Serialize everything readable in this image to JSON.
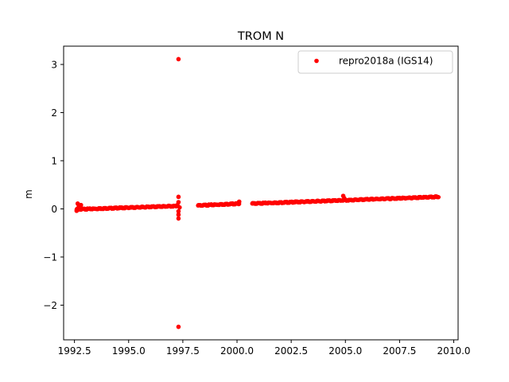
{
  "chart_data": {
    "type": "scatter",
    "title": "TROM N",
    "xlabel": "",
    "ylabel": "m",
    "xlim": [
      1992.0,
      2010.2
    ],
    "ylim": [
      -2.72,
      3.38
    ],
    "xticks": [
      1992.5,
      1995.0,
      1997.5,
      2000.0,
      2002.5,
      2005.0,
      2007.5,
      2010.0
    ],
    "xtick_labels": [
      "1992.5",
      "1995.0",
      "1997.5",
      "2000.0",
      "2002.5",
      "2005.0",
      "2007.5",
      "2010.0"
    ],
    "yticks": [
      -2,
      -1,
      0,
      1,
      2,
      3
    ],
    "ytick_labels": [
      "−2",
      "−1",
      "0",
      "1",
      "2",
      "3"
    ],
    "grid": false,
    "legend_position": "top-right",
    "series": [
      {
        "name": "repro2018a (IGS14)",
        "color": "#ff0000",
        "marker": "dot",
        "segments": [
          {
            "x_start": 1992.6,
            "x_end": 1997.2,
            "y_start": -0.01,
            "y_end": 0.06
          },
          {
            "x_start": 1998.2,
            "x_end": 2000.1,
            "y_start": 0.07,
            "y_end": 0.11
          },
          {
            "x_start": 2000.7,
            "x_end": 2009.3,
            "y_start": 0.11,
            "y_end": 0.25
          }
        ],
        "points": [
          {
            "x": 1997.3,
            "y": 3.11
          },
          {
            "x": 1997.3,
            "y": 0.25
          },
          {
            "x": 1997.3,
            "y": 0.14
          },
          {
            "x": 1997.25,
            "y": 0.08
          },
          {
            "x": 1997.35,
            "y": 0.03
          },
          {
            "x": 1997.3,
            "y": -0.05
          },
          {
            "x": 1997.3,
            "y": -0.12
          },
          {
            "x": 1997.3,
            "y": -0.2
          },
          {
            "x": 1997.3,
            "y": -2.45
          },
          {
            "x": 1992.65,
            "y": 0.11
          },
          {
            "x": 1992.7,
            "y": 0.06
          },
          {
            "x": 1992.8,
            "y": 0.08
          },
          {
            "x": 1992.6,
            "y": -0.04
          },
          {
            "x": 2000.1,
            "y": 0.15
          },
          {
            "x": 2004.9,
            "y": 0.27
          },
          {
            "x": 2004.95,
            "y": 0.22
          }
        ]
      }
    ]
  }
}
